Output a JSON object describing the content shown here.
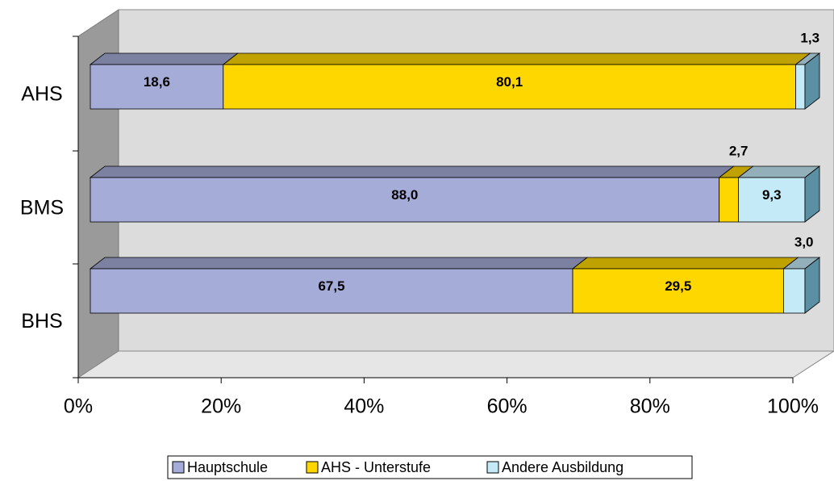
{
  "chart_data": {
    "type": "bar",
    "orientation": "horizontal",
    "stacked": true,
    "three_d": true,
    "categories": [
      "AHS",
      "BMS",
      "BHS"
    ],
    "series": [
      {
        "name": "Hauptschule",
        "color": "#a5acd8",
        "values": [
          18.6,
          88.0,
          67.5
        ],
        "value_labels": [
          "18,6",
          "88,0",
          "67,5"
        ]
      },
      {
        "name": "AHS - Unterstufe",
        "color": "#ffd700",
        "values": [
          80.1,
          2.7,
          29.5
        ],
        "value_labels": [
          "80,1",
          "2,7",
          "29,5"
        ]
      },
      {
        "name": "Andere Ausbildung",
        "color": "#c4e9f7",
        "values": [
          1.3,
          9.3,
          3.0
        ],
        "value_labels": [
          "1,3",
          "9,3",
          "3,0"
        ]
      }
    ],
    "xlim": [
      0,
      100
    ],
    "xticks": [
      {
        "value": 0,
        "label": "0%"
      },
      {
        "value": 20,
        "label": "20%"
      },
      {
        "value": 40,
        "label": "40%"
      },
      {
        "value": 60,
        "label": "60%"
      },
      {
        "value": 80,
        "label": "80%"
      },
      {
        "value": 100,
        "label": "100%"
      }
    ],
    "legend": "bottom"
  }
}
